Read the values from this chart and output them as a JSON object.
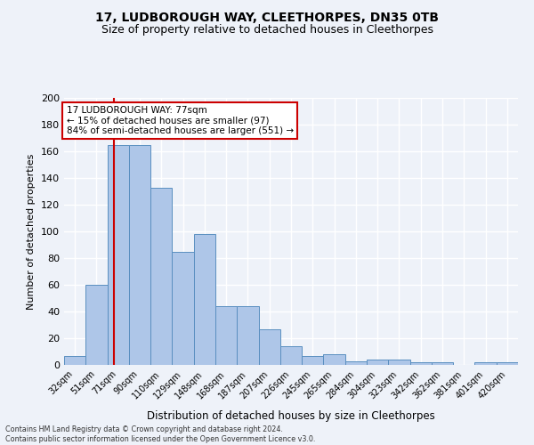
{
  "title_line1": "17, LUDBOROUGH WAY, CLEETHORPES, DN35 0TB",
  "title_line2": "Size of property relative to detached houses in Cleethorpes",
  "xlabel": "Distribution of detached houses by size in Cleethorpes",
  "ylabel": "Number of detached properties",
  "categories": [
    "32sqm",
    "51sqm",
    "71sqm",
    "90sqm",
    "110sqm",
    "129sqm",
    "148sqm",
    "168sqm",
    "187sqm",
    "207sqm",
    "226sqm",
    "245sqm",
    "265sqm",
    "284sqm",
    "304sqm",
    "323sqm",
    "342sqm",
    "362sqm",
    "381sqm",
    "401sqm",
    "420sqm"
  ],
  "values": [
    7,
    60,
    165,
    165,
    133,
    85,
    98,
    44,
    44,
    27,
    14,
    7,
    8,
    3,
    4,
    4,
    2,
    2,
    0,
    2,
    2
  ],
  "bar_color": "#aec6e8",
  "bar_edge_color": "#5a8fc0",
  "vline_color": "#cc0000",
  "vline_x": 1.82,
  "annotation_text": "17 LUDBOROUGH WAY: 77sqm\n← 15% of detached houses are smaller (97)\n84% of semi-detached houses are larger (551) →",
  "annotation_box_color": "#ffffff",
  "annotation_box_edge_color": "#cc0000",
  "ylim": [
    0,
    200
  ],
  "yticks": [
    0,
    20,
    40,
    60,
    80,
    100,
    120,
    140,
    160,
    180,
    200
  ],
  "bg_color": "#eef2f9",
  "grid_color": "#ffffff",
  "footnote": "Contains HM Land Registry data © Crown copyright and database right 2024.\nContains public sector information licensed under the Open Government Licence v3.0."
}
